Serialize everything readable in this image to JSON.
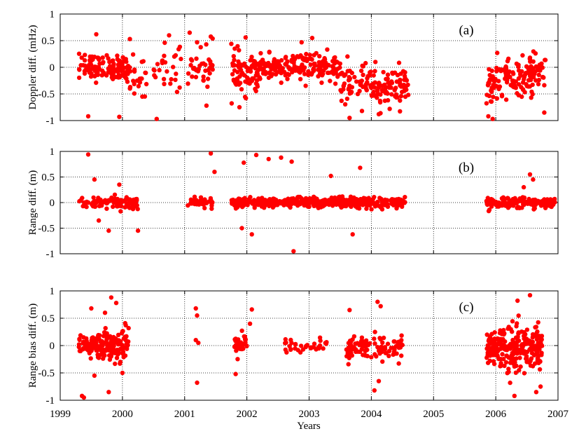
{
  "figure": {
    "xlabel": "Years",
    "x_tick_labels": [
      "1999",
      "2000",
      "2001",
      "2002",
      "2003",
      "2004",
      "2005",
      "2006",
      "2007"
    ]
  },
  "chart_data": [
    {
      "type": "scatter",
      "panel_label": "(a)",
      "ylabel": "Doppler diff. (mHz)",
      "xlim": [
        1999,
        2007
      ],
      "ylim": [
        -1,
        1
      ],
      "y_ticks": [
        -1,
        -0.5,
        0,
        0.5,
        1
      ],
      "y_tick_labels": [
        "-1",
        "-0.5",
        "0",
        "0.5",
        "1"
      ],
      "grid": true,
      "marker_color": "#ff0000",
      "series": [
        {
          "points": [
            [
              1999.45,
              -0.92
            ],
            [
              1999.58,
              0.62
            ],
            [
              1999.95,
              -0.93
            ],
            [
              2000.32,
              -0.55
            ],
            [
              2000.55,
              -0.97
            ],
            [
              2000.12,
              0.53
            ],
            [
              2000.68,
              0.46
            ],
            [
              2000.75,
              0.6
            ],
            [
              2000.92,
              -0.38
            ],
            [
              2001.08,
              0.65
            ],
            [
              2001.2,
              0.47
            ],
            [
              2001.35,
              -0.72
            ],
            [
              2001.45,
              0.54
            ],
            [
              2001.88,
              -0.75
            ],
            [
              2001.98,
              0.56
            ],
            [
              2002.88,
              0.47
            ],
            [
              2003.05,
              0.55
            ],
            [
              2003.65,
              -0.95
            ],
            [
              2003.85,
              -0.82
            ],
            [
              2004.12,
              -0.88
            ],
            [
              2004.55,
              -0.22
            ],
            [
              2005.88,
              -0.92
            ],
            [
              2005.95,
              -0.97
            ],
            [
              2006.55,
              0.18
            ],
            [
              2006.78,
              -0.85
            ]
          ]
        }
      ]
    },
    {
      "type": "scatter",
      "panel_label": "(b)",
      "ylabel": "Range diff. (m)",
      "xlim": [
        1999,
        2007
      ],
      "ylim": [
        -1,
        1
      ],
      "y_ticks": [
        -1,
        -0.5,
        0,
        0.5,
        1
      ],
      "y_tick_labels": [
        "-1",
        "-0.5",
        "0",
        "0.5",
        "1"
      ],
      "grid": true,
      "marker_color": "#ff0000",
      "series": [
        {
          "points": [
            [
              1999.45,
              0.94
            ],
            [
              1999.55,
              0.45
            ],
            [
              1999.62,
              -0.35
            ],
            [
              1999.78,
              -0.55
            ],
            [
              2000.25,
              -0.55
            ],
            [
              1999.95,
              0.35
            ],
            [
              2001.42,
              0.96
            ],
            [
              2001.48,
              0.6
            ],
            [
              2001.95,
              0.78
            ],
            [
              2002.15,
              0.93
            ],
            [
              2002.35,
              0.85
            ],
            [
              2002.55,
              0.88
            ],
            [
              2002.72,
              0.8
            ],
            [
              2002.75,
              -0.95
            ],
            [
              2003.82,
              0.68
            ],
            [
              2003.35,
              0.52
            ],
            [
              2003.7,
              -0.62
            ],
            [
              2002.08,
              -0.62
            ],
            [
              2001.92,
              -0.5
            ],
            [
              2006.55,
              0.55
            ],
            [
              2006.6,
              0.45
            ],
            [
              2006.45,
              0.3
            ]
          ]
        }
      ]
    },
    {
      "type": "scatter",
      "panel_label": "(c)",
      "ylabel": "Range bias diff. (m)",
      "xlim": [
        1999,
        2007
      ],
      "ylim": [
        -1,
        1
      ],
      "y_ticks": [
        -1,
        -0.5,
        0,
        0.5,
        1
      ],
      "y_tick_labels": [
        "-1",
        "-0.5",
        "0",
        "0.5",
        "1"
      ],
      "grid": true,
      "marker_color": "#ff0000",
      "series": [
        {
          "points": [
            [
              1999.35,
              -0.92
            ],
            [
              1999.38,
              -0.95
            ],
            [
              1999.5,
              0.68
            ],
            [
              1999.82,
              0.88
            ],
            [
              1999.9,
              0.78
            ],
            [
              1999.72,
              0.6
            ],
            [
              1999.78,
              -0.85
            ],
            [
              1999.55,
              -0.55
            ],
            [
              2000.0,
              -0.5
            ],
            [
              2001.18,
              0.68
            ],
            [
              2001.2,
              0.55
            ],
            [
              2001.18,
              0.1
            ],
            [
              2001.22,
              0.05
            ],
            [
              2001.2,
              -0.68
            ],
            [
              2001.82,
              -0.52
            ],
            [
              2002.08,
              0.66
            ],
            [
              2002.05,
              0.4
            ],
            [
              2003.65,
              0.65
            ],
            [
              2004.1,
              0.8
            ],
            [
              2004.15,
              0.72
            ],
            [
              2004.05,
              -0.82
            ],
            [
              2004.12,
              -0.65
            ],
            [
              2006.35,
              0.82
            ],
            [
              2006.55,
              0.92
            ],
            [
              2006.3,
              -0.92
            ],
            [
              2006.65,
              -0.85
            ],
            [
              2006.72,
              -0.75
            ]
          ]
        }
      ]
    }
  ]
}
